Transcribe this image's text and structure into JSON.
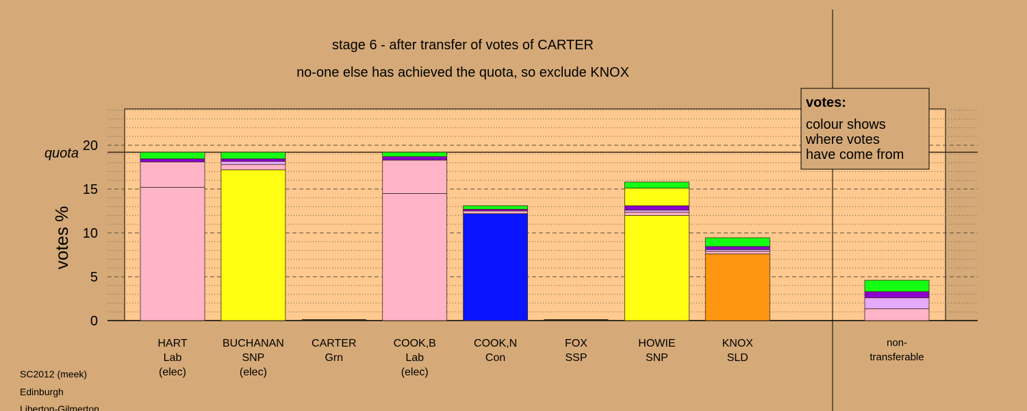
{
  "chart_data": {
    "type": "bar",
    "stacked": true,
    "title": "stage 6 - after transfer of votes of CARTER",
    "subtitle": "no-one else has achieved the quota, so exclude KNOX",
    "ylabel": "votes %",
    "quota_label": "quota",
    "quota_value": 19.2,
    "ylim": [
      0,
      24
    ],
    "yticks": [
      0,
      5,
      10,
      15,
      20
    ],
    "grid": true,
    "legend": {
      "title": "votes:",
      "lines": [
        "colour shows",
        "where votes",
        "have come from"
      ],
      "position": "top-right"
    },
    "colors": {
      "background": "#d5aa78",
      "plot_area": "#ffc98f",
      "pink": "#ffb4c8",
      "yellow": "#ffff14",
      "blue": "#0a14ff",
      "orange": "#ff9612",
      "lilac": "#e6aaff",
      "purple": "#8c00d2",
      "green": "#14ff14"
    },
    "categories": [
      {
        "name": "HART",
        "party": "Lab",
        "note": "(elec)",
        "segments": [
          {
            "color": "pink",
            "value": 15.2
          },
          {
            "color": "pink",
            "value": 2.9
          },
          {
            "color": "purple",
            "value": 0.35
          },
          {
            "color": "green",
            "value": 0.75
          }
        ]
      },
      {
        "name": "BUCHANAN",
        "party": "SNP",
        "note": "(elec)",
        "segments": [
          {
            "color": "yellow",
            "value": 17.2
          },
          {
            "color": "pink",
            "value": 0.6
          },
          {
            "color": "lilac",
            "value": 0.35
          },
          {
            "color": "purple",
            "value": 0.3
          },
          {
            "color": "green",
            "value": 0.75
          }
        ]
      },
      {
        "name": "CARTER",
        "party": "Grn",
        "note": "",
        "segments": []
      },
      {
        "name": "COOK,B",
        "party": "Lab",
        "note": "(elec)",
        "segments": [
          {
            "color": "pink",
            "value": 14.5
          },
          {
            "color": "pink",
            "value": 3.8
          },
          {
            "color": "purple",
            "value": 0.4
          },
          {
            "color": "green",
            "value": 0.5
          }
        ]
      },
      {
        "name": "COOK,N",
        "party": "Con",
        "note": "",
        "segments": [
          {
            "color": "blue",
            "value": 12.2
          },
          {
            "color": "pink",
            "value": 0.3
          },
          {
            "color": "purple",
            "value": 0.2
          },
          {
            "color": "green",
            "value": 0.4
          }
        ]
      },
      {
        "name": "FOX",
        "party": "SSP",
        "note": "",
        "segments": []
      },
      {
        "name": "HOWIE",
        "party": "SNP",
        "note": "",
        "segments": [
          {
            "color": "yellow",
            "value": 12.0
          },
          {
            "color": "pink",
            "value": 0.35
          },
          {
            "color": "lilac",
            "value": 0.25
          },
          {
            "color": "purple",
            "value": 0.5
          },
          {
            "color": "yellow",
            "value": 2.0
          },
          {
            "color": "green",
            "value": 0.7
          }
        ]
      },
      {
        "name": "KNOX",
        "party": "SLD",
        "note": "",
        "segments": [
          {
            "color": "orange",
            "value": 7.6
          },
          {
            "color": "pink",
            "value": 0.3
          },
          {
            "color": "lilac",
            "value": 0.2
          },
          {
            "color": "purple",
            "value": 0.35
          },
          {
            "color": "green",
            "value": 1.0
          }
        ]
      }
    ],
    "nontransferable": {
      "label_line1": "non-",
      "label_line2": "transferable",
      "segments": [
        {
          "color": "pink",
          "value": 1.35
        },
        {
          "color": "lilac",
          "value": 1.25
        },
        {
          "color": "purple",
          "value": 0.7
        },
        {
          "color": "green",
          "value": 1.3
        }
      ]
    }
  },
  "footer": {
    "line1": "SC2012 (meek)",
    "line2": "Edinburgh",
    "line3": "Liberton-Gilmerton"
  }
}
